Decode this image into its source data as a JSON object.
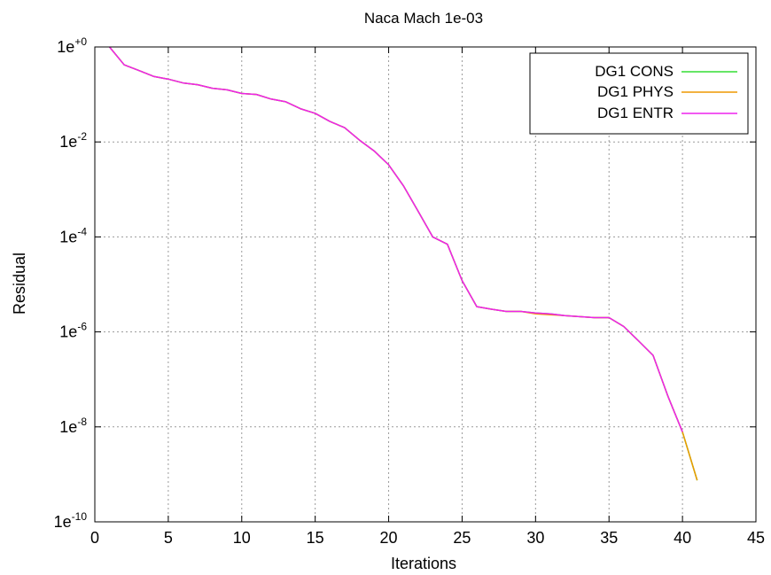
{
  "chart_data": {
    "type": "line",
    "title": "Naca Mach 1e-03",
    "xlabel": "Iterations",
    "ylabel": "Residual",
    "xlim": [
      0,
      45
    ],
    "ylim": [
      1e-10,
      1
    ],
    "yscale": "log",
    "grid": true,
    "legend_position": "top-right",
    "x_ticks": [
      "0",
      "5",
      "10",
      "15",
      "20",
      "25",
      "30",
      "35",
      "40",
      "45"
    ],
    "y_ticks": [
      {
        "base": "1e",
        "exp": "+0",
        "value": 1
      },
      {
        "base": "1e",
        "exp": "-2",
        "value": 0.01
      },
      {
        "base": "1e",
        "exp": "-4",
        "value": 0.0001
      },
      {
        "base": "1e",
        "exp": "-6",
        "value": 1e-06
      },
      {
        "base": "1e",
        "exp": "-8",
        "value": 1e-08
      },
      {
        "base": "1e",
        "exp": "-10",
        "value": 1e-10
      }
    ],
    "series": [
      {
        "name": "DG1 CONS",
        "color": "#33dd33",
        "x": [
          1,
          2,
          3,
          4,
          5,
          6,
          7,
          8,
          9,
          10,
          11,
          12,
          13,
          14,
          15,
          16,
          17,
          18,
          19,
          20,
          21,
          22,
          23,
          24,
          25,
          26,
          27,
          28,
          29,
          30,
          31,
          32,
          33,
          34,
          35,
          36,
          37,
          38,
          39,
          40,
          41
        ],
        "y": [
          1.0,
          0.42,
          0.32,
          0.24,
          0.21,
          0.175,
          0.16,
          0.135,
          0.125,
          0.105,
          0.1,
          0.08,
          0.07,
          0.05,
          0.04,
          0.027,
          0.02,
          0.011,
          0.0065,
          0.0033,
          0.0012,
          0.00035,
          0.0001,
          7e-05,
          1.2e-05,
          3.4e-06,
          3e-06,
          2.7e-06,
          2.7e-06,
          2.5e-06,
          2.4e-06,
          2.2e-06,
          2.1e-06,
          2e-06,
          2e-06,
          1.3e-06,
          6.5e-07,
          3.2e-07,
          4.5e-08,
          7.8e-09,
          7.5e-10
        ]
      },
      {
        "name": "DG1 PHYS",
        "color": "#ee9900",
        "x": [
          1,
          2,
          3,
          4,
          5,
          6,
          7,
          8,
          9,
          10,
          11,
          12,
          13,
          14,
          15,
          16,
          17,
          18,
          19,
          20,
          21,
          22,
          23,
          24,
          25,
          26,
          27,
          28,
          29,
          30,
          31,
          32,
          33,
          34,
          35,
          36,
          37,
          38,
          39,
          40,
          41
        ],
        "y": [
          1.0,
          0.42,
          0.32,
          0.24,
          0.21,
          0.175,
          0.16,
          0.135,
          0.125,
          0.105,
          0.1,
          0.08,
          0.07,
          0.05,
          0.04,
          0.027,
          0.02,
          0.011,
          0.0065,
          0.0033,
          0.0012,
          0.00035,
          0.0001,
          7e-05,
          1.2e-05,
          3.4e-06,
          3e-06,
          2.7e-06,
          2.7e-06,
          2.4e-06,
          2.3e-06,
          2.2e-06,
          2.1e-06,
          2e-06,
          2e-06,
          1.3e-06,
          6.5e-07,
          3.2e-07,
          4.5e-08,
          7.8e-09,
          7.5e-10
        ]
      },
      {
        "name": "DG1 ENTR",
        "color": "#ee22ee",
        "x": [
          1,
          2,
          3,
          4,
          5,
          6,
          7,
          8,
          9,
          10,
          11,
          12,
          13,
          14,
          15,
          16,
          17,
          18,
          19,
          20,
          21,
          22,
          23,
          24,
          25,
          26,
          27,
          28,
          29,
          30,
          31,
          32,
          33,
          34,
          35,
          36,
          37,
          38,
          39,
          40
        ],
        "y": [
          1.0,
          0.42,
          0.32,
          0.24,
          0.21,
          0.175,
          0.16,
          0.135,
          0.125,
          0.105,
          0.1,
          0.08,
          0.07,
          0.05,
          0.04,
          0.027,
          0.02,
          0.011,
          0.0065,
          0.0033,
          0.0012,
          0.00035,
          0.0001,
          7e-05,
          1.2e-05,
          3.4e-06,
          3e-06,
          2.7e-06,
          2.7e-06,
          2.5e-06,
          2.4e-06,
          2.2e-06,
          2.1e-06,
          2e-06,
          2e-06,
          1.3e-06,
          6.5e-07,
          3.2e-07,
          4.5e-08,
          7.8e-09
        ]
      }
    ]
  }
}
